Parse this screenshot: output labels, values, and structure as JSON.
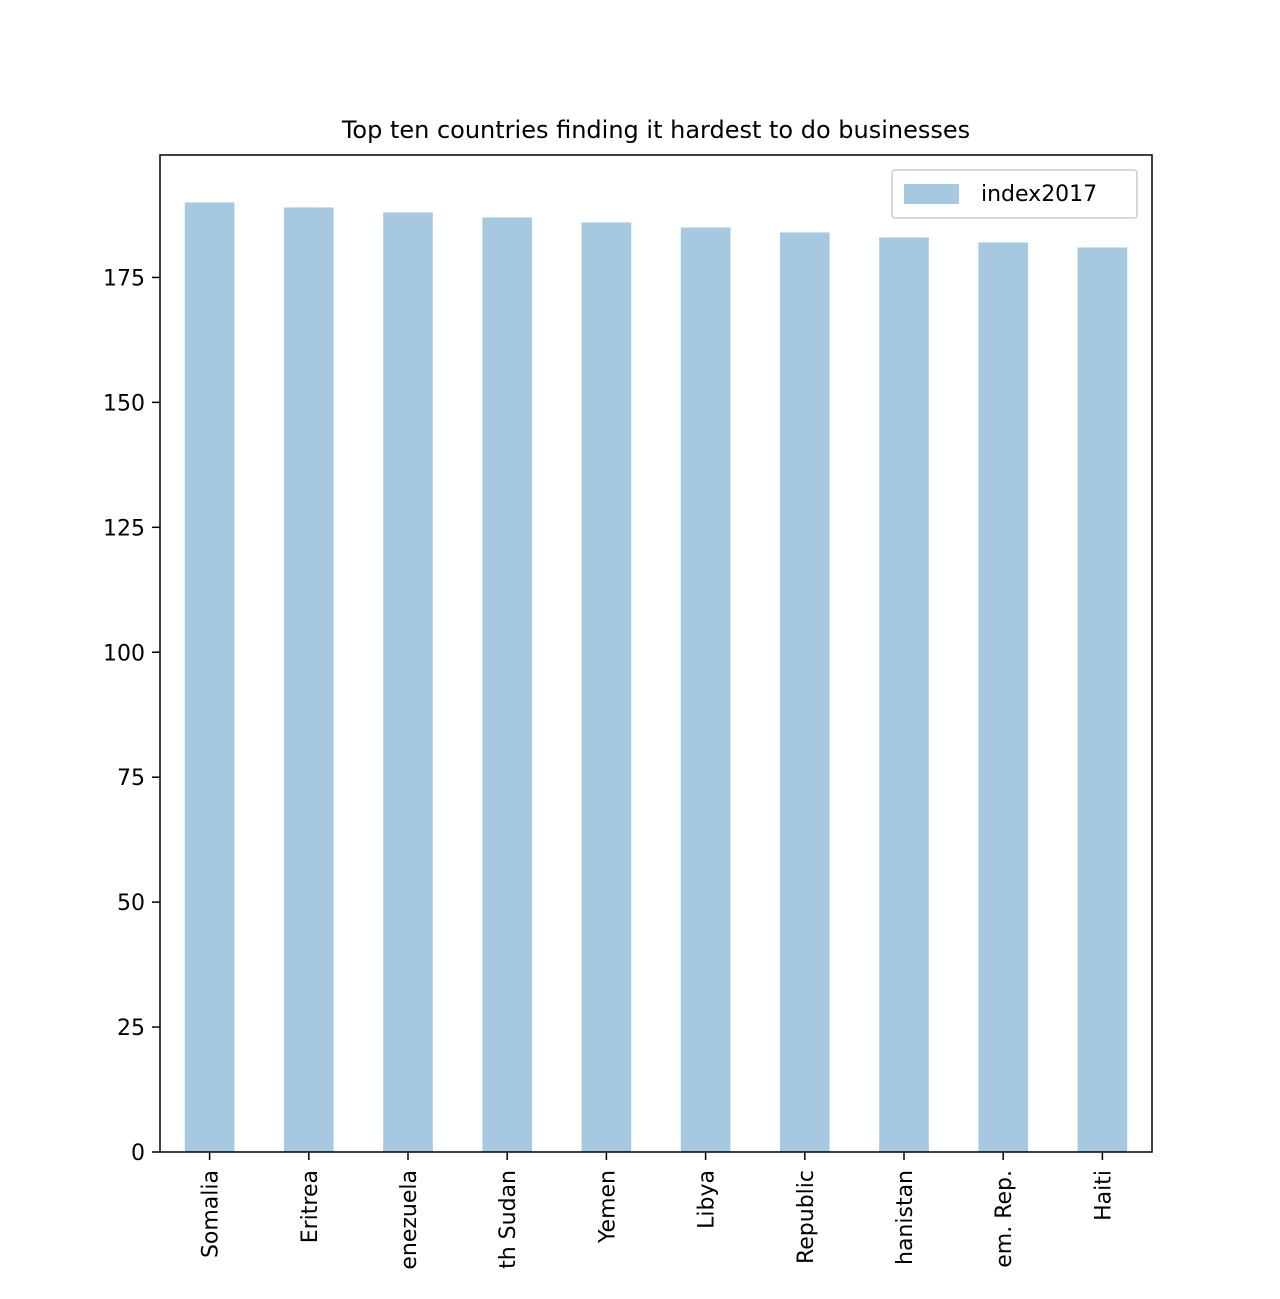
{
  "chart_data": {
    "type": "bar",
    "title": "Top ten countries finding it hardest to do businesses",
    "categories": [
      "Somalia",
      "Eritrea",
      "enezuela",
      "th Sudan",
      "Yemen",
      "Libya",
      "Republic",
      "hanistan",
      "em. Rep.",
      "Haiti"
    ],
    "series": [
      {
        "name": "index2017",
        "values": [
          190,
          189,
          188,
          187,
          186,
          185,
          184,
          183,
          182,
          181
        ]
      }
    ],
    "ylim": [
      0,
      199.5
    ],
    "yticks": [
      0,
      25,
      50,
      75,
      100,
      125,
      150,
      175
    ],
    "xlabel": "",
    "ylabel": "",
    "grid": false,
    "legend": "top-right",
    "bar_color": "#a6c8e0"
  }
}
